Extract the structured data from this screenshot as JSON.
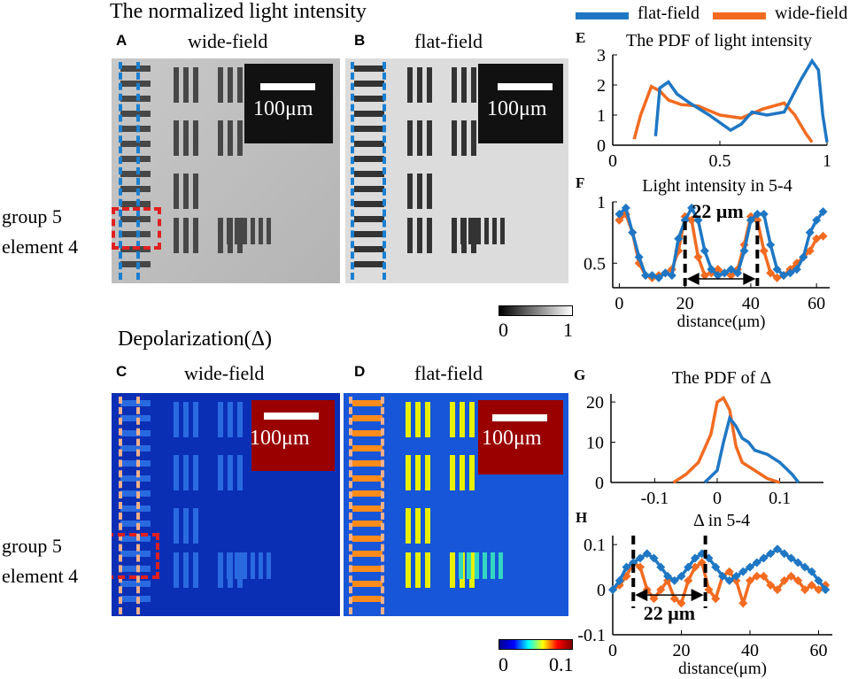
{
  "header": {
    "title": "The normalized light intensity"
  },
  "section2": {
    "title": "Depolarization(Δ)"
  },
  "legend": [
    {
      "name": "flat-field",
      "color": "#1f77c4"
    },
    {
      "name": "wide-field",
      "color": "#f26b21"
    }
  ],
  "side_labels": {
    "top": [
      "group 5",
      "element 4"
    ],
    "bottom": [
      "group 5",
      "element 4"
    ]
  },
  "panels": {
    "A": {
      "letter": "A",
      "title": "wide-field",
      "scale": "100μm"
    },
    "B": {
      "letter": "B",
      "title": "flat-field",
      "scale": "100μm"
    },
    "C": {
      "letter": "C",
      "title": "wide-field",
      "scale": "100μm"
    },
    "D": {
      "letter": "D",
      "title": "flat-field",
      "scale": "100μm"
    }
  },
  "colorbars": {
    "gray": {
      "min": "0",
      "max": "1"
    },
    "jet": {
      "min": "0",
      "max": "0.1"
    }
  },
  "colors": {
    "flat": "#1f77c4",
    "wide": "#f26b21",
    "marker_red": "#e02020",
    "marker_blue": "#1a7fd0",
    "marker_peach": "#f2b08a"
  },
  "chart_data": [
    {
      "id": "E",
      "type": "line",
      "title": "The PDF of light intensity",
      "xlim": [
        0,
        1
      ],
      "ylim": [
        0,
        3
      ],
      "xticks": [
        0,
        0.5,
        1
      ],
      "xtick_labels": [
        "0",
        "0.5",
        "1"
      ],
      "yticks": [
        0,
        1,
        2,
        3
      ],
      "ytick_labels": [
        "0",
        "1",
        "2",
        "3"
      ],
      "xlabel": "",
      "series": [
        {
          "name": "flat-field",
          "x": [
            0.2,
            0.22,
            0.26,
            0.3,
            0.36,
            0.45,
            0.55,
            0.6,
            0.65,
            0.72,
            0.8,
            0.88,
            0.93,
            0.96,
            0.98,
            1.0
          ],
          "y": [
            0.3,
            1.9,
            2.1,
            1.7,
            1.4,
            1.0,
            0.5,
            0.7,
            1.1,
            1.0,
            1.1,
            2.2,
            2.8,
            2.5,
            1.0,
            0.1
          ]
        },
        {
          "name": "wide-field",
          "x": [
            0.1,
            0.13,
            0.18,
            0.22,
            0.26,
            0.32,
            0.4,
            0.5,
            0.6,
            0.7,
            0.8,
            0.85,
            0.9,
            0.93
          ],
          "y": [
            0.2,
            1.0,
            1.95,
            1.8,
            1.5,
            1.35,
            1.3,
            1.0,
            0.9,
            1.2,
            1.4,
            1.0,
            0.4,
            0.1
          ]
        }
      ]
    },
    {
      "id": "F",
      "type": "line",
      "title": "Light intensity in 5-4",
      "xlim": [
        -2,
        64
      ],
      "ylim": [
        0.3,
        1.0
      ],
      "xticks": [
        0,
        20,
        40,
        60
      ],
      "xtick_labels": [
        "0",
        "20",
        "40",
        "60"
      ],
      "yticks": [
        0.5,
        1.0
      ],
      "ytick_labels": [
        "0.5",
        "1"
      ],
      "xlabel": "distance(μm)",
      "annotation": "22 μm",
      "series": [
        {
          "name": "flat-field",
          "x": [
            0,
            2,
            4,
            6,
            8,
            10,
            12,
            14,
            16,
            18,
            20,
            22,
            24,
            26,
            28,
            30,
            32,
            34,
            36,
            38,
            40,
            42,
            44,
            46,
            48,
            50,
            52,
            54,
            56,
            58,
            60,
            62
          ],
          "y": [
            0.9,
            0.95,
            0.75,
            0.55,
            0.4,
            0.4,
            0.38,
            0.42,
            0.4,
            0.7,
            0.85,
            0.95,
            0.85,
            0.6,
            0.45,
            0.4,
            0.42,
            0.45,
            0.42,
            0.6,
            0.85,
            0.9,
            0.9,
            0.65,
            0.45,
            0.4,
            0.42,
            0.45,
            0.55,
            0.75,
            0.85,
            0.92
          ]
        },
        {
          "name": "wide-field",
          "x": [
            0,
            2,
            4,
            6,
            8,
            10,
            12,
            14,
            16,
            18,
            20,
            22,
            24,
            26,
            28,
            30,
            32,
            34,
            36,
            38,
            40,
            42,
            44,
            46,
            48,
            50,
            52,
            54,
            56,
            58,
            60,
            62
          ],
          "y": [
            0.85,
            0.9,
            0.75,
            0.5,
            0.4,
            0.38,
            0.4,
            0.42,
            0.45,
            0.6,
            0.88,
            0.85,
            0.55,
            0.4,
            0.42,
            0.45,
            0.42,
            0.4,
            0.45,
            0.65,
            0.88,
            0.85,
            0.6,
            0.42,
            0.38,
            0.4,
            0.45,
            0.5,
            0.55,
            0.6,
            0.7,
            0.72
          ]
        }
      ]
    },
    {
      "id": "G",
      "type": "line",
      "title": "The PDF of Δ",
      "xlim": [
        -0.17,
        0.17
      ],
      "ylim": [
        0,
        22
      ],
      "xticks": [
        -0.1,
        0,
        0.1
      ],
      "xtick_labels": [
        "-0.1",
        "0",
        "0.1"
      ],
      "yticks": [
        0,
        10,
        20
      ],
      "ytick_labels": [
        "0",
        "10",
        "20"
      ],
      "xlabel": "",
      "series": [
        {
          "name": "flat-field",
          "x": [
            -0.02,
            0.0,
            0.01,
            0.02,
            0.03,
            0.04,
            0.05,
            0.06,
            0.08,
            0.1,
            0.12,
            0.13
          ],
          "y": [
            0,
            3,
            10,
            16,
            14,
            11,
            10,
            8,
            7,
            5,
            2,
            0
          ]
        },
        {
          "name": "wide-field",
          "x": [
            -0.07,
            -0.05,
            -0.03,
            -0.01,
            0.0,
            0.01,
            0.02,
            0.03,
            0.04,
            0.06,
            0.08,
            0.1
          ],
          "y": [
            0,
            2,
            5,
            12,
            20,
            21,
            18,
            9,
            5,
            3,
            1,
            0
          ]
        }
      ]
    },
    {
      "id": "H",
      "type": "line",
      "title": "Δ in 5-4",
      "xlim": [
        0,
        64
      ],
      "ylim": [
        -0.1,
        0.12
      ],
      "xticks": [
        0,
        20,
        40,
        60
      ],
      "xtick_labels": [
        "0",
        "20",
        "40",
        "60"
      ],
      "yticks": [
        -0.1,
        0,
        0.1
      ],
      "ytick_labels": [
        "-0.1",
        "0",
        "0.1"
      ],
      "xlabel": "distance(μm)",
      "annotation": "22 μm",
      "series": [
        {
          "name": "flat-field",
          "x": [
            0,
            2,
            4,
            6,
            8,
            10,
            12,
            14,
            16,
            18,
            20,
            22,
            24,
            26,
            28,
            30,
            32,
            34,
            36,
            38,
            40,
            42,
            44,
            46,
            48,
            50,
            52,
            54,
            56,
            58,
            60,
            62
          ],
          "y": [
            0.0,
            0.02,
            0.05,
            0.06,
            0.07,
            0.08,
            0.07,
            0.05,
            0.03,
            0.02,
            0.03,
            0.05,
            0.07,
            0.08,
            0.07,
            0.05,
            0.03,
            0.02,
            0.03,
            0.04,
            0.05,
            0.06,
            0.07,
            0.08,
            0.09,
            0.08,
            0.07,
            0.06,
            0.05,
            0.04,
            0.02,
            0.0
          ]
        },
        {
          "name": "wide-field",
          "x": [
            0,
            2,
            4,
            6,
            8,
            10,
            12,
            14,
            16,
            18,
            20,
            22,
            24,
            26,
            28,
            30,
            32,
            34,
            36,
            38,
            40,
            42,
            44,
            46,
            48,
            50,
            52,
            54,
            56,
            58,
            60,
            62
          ],
          "y": [
            0.0,
            0.01,
            0.03,
            0.06,
            0.05,
            0.0,
            -0.02,
            0.0,
            0.02,
            -0.02,
            -0.03,
            0.02,
            0.05,
            0.06,
            0.0,
            -0.02,
            0.03,
            0.04,
            0.02,
            -0.03,
            0.02,
            0.03,
            0.03,
            0.01,
            0.0,
            0.02,
            0.03,
            0.02,
            0.0,
            0.01,
            0.0,
            0.01
          ]
        }
      ]
    }
  ]
}
